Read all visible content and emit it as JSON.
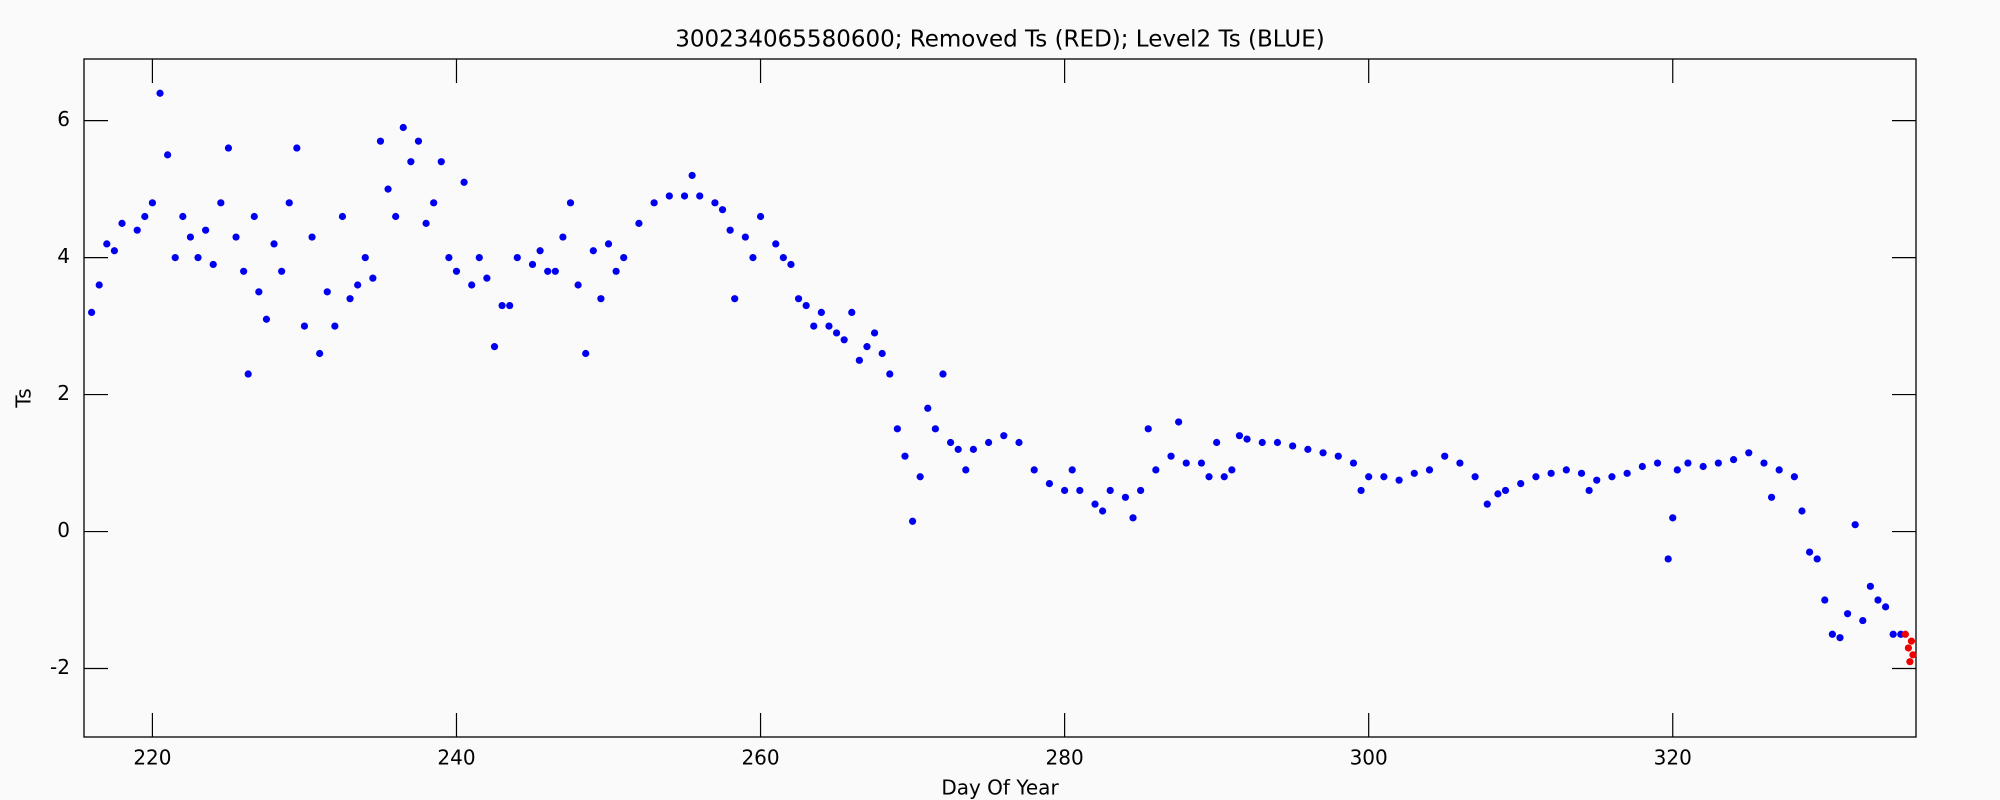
{
  "chart_data": {
    "type": "scatter",
    "title": "300234065580600; Removed Ts (RED); Level2 Ts (BLUE)",
    "x_label": "Day Of Year",
    "y_label": "Ts",
    "xlim": [
      215.5,
      336
    ],
    "ylim": [
      -3,
      6.9
    ],
    "xticks": [
      220,
      240,
      260,
      280,
      300,
      320
    ],
    "yticks": [
      -2,
      0,
      2,
      4,
      6
    ],
    "grid": false,
    "series": [
      {
        "color": "#0000ee",
        "x": [
          216,
          216.5,
          217,
          217.5,
          218,
          219,
          219.5,
          220,
          220.5,
          221,
          221.5,
          222,
          222.5,
          223,
          223.5,
          224,
          224.5,
          225,
          225.5,
          226,
          226.3,
          226.7,
          227,
          227.5,
          228,
          228.5,
          229,
          229.5,
          230,
          230.5,
          231,
          231.5,
          232,
          232.5,
          233,
          233.5,
          234,
          234.5,
          235,
          235.5,
          236,
          236.5,
          237,
          237.5,
          238,
          238.5,
          239,
          239.5,
          240,
          240.5,
          241,
          241.5,
          242,
          242.5,
          243,
          243.5,
          244,
          245,
          245.5,
          246,
          246.5,
          247,
          247.5,
          248,
          248.5,
          249,
          249.5,
          250,
          250.5,
          251,
          252,
          253,
          254,
          255,
          255.5,
          256,
          257,
          257.5,
          258,
          258.3,
          259,
          259.5,
          260,
          261,
          261.5,
          262,
          262.5,
          263,
          263.5,
          264,
          264.5,
          265,
          265.5,
          266,
          266.5,
          267,
          267.5,
          268,
          268.5,
          269,
          269.5,
          270,
          270.5,
          271,
          271.5,
          272,
          272.5,
          273,
          273.5,
          274,
          275,
          276,
          277,
          278,
          279,
          280,
          280.5,
          281,
          282,
          282.5,
          283,
          284,
          284.5,
          285,
          285.5,
          286,
          287,
          287.5,
          288,
          289,
          289.5,
          290,
          290.5,
          291,
          291.5,
          292,
          293,
          294,
          295,
          296,
          297,
          298,
          299,
          299.5,
          300,
          301,
          302,
          303,
          304,
          305,
          306,
          307,
          307.8,
          308.5,
          309,
          310,
          311,
          312,
          313,
          314,
          314.5,
          315,
          316,
          317,
          318,
          319,
          319.7,
          320,
          320.3,
          321,
          322,
          323,
          324,
          325,
          326,
          326.5,
          327,
          328,
          328.5,
          329,
          329.5,
          330,
          330.5,
          331,
          331.5,
          332,
          332.5,
          333,
          333.5,
          334,
          334.5,
          335
        ],
        "values": [
          3.2,
          3.6,
          4.2,
          4.1,
          4.5,
          4.4,
          4.6,
          4.8,
          6.4,
          5.5,
          4.0,
          4.6,
          4.3,
          4.0,
          4.4,
          3.9,
          4.8,
          5.6,
          4.3,
          3.8,
          2.3,
          4.6,
          3.5,
          3.1,
          4.2,
          3.8,
          4.8,
          5.6,
          3.0,
          4.3,
          2.6,
          3.5,
          3.0,
          4.6,
          3.4,
          3.6,
          4.0,
          3.7,
          5.7,
          5.0,
          4.6,
          5.9,
          5.4,
          5.7,
          4.5,
          4.8,
          5.4,
          4.0,
          3.8,
          5.1,
          3.6,
          4.0,
          3.7,
          2.7,
          3.3,
          3.3,
          4.0,
          3.9,
          4.1,
          3.8,
          3.8,
          4.3,
          4.8,
          3.6,
          2.6,
          4.1,
          3.4,
          4.2,
          3.8,
          4.0,
          4.5,
          4.8,
          4.9,
          4.9,
          5.2,
          4.9,
          4.8,
          4.7,
          4.4,
          3.4,
          4.3,
          4.0,
          4.6,
          4.2,
          4.0,
          3.9,
          3.4,
          3.3,
          3.0,
          3.2,
          3.0,
          2.9,
          2.8,
          3.2,
          2.5,
          2.7,
          2.9,
          2.6,
          2.3,
          1.5,
          1.1,
          0.15,
          0.8,
          1.8,
          1.5,
          2.3,
          1.3,
          1.2,
          0.9,
          1.2,
          1.3,
          1.4,
          1.3,
          0.9,
          0.7,
          0.6,
          0.9,
          0.6,
          0.4,
          0.3,
          0.6,
          0.5,
          0.2,
          0.6,
          1.5,
          0.9,
          1.1,
          1.6,
          1.0,
          1.0,
          0.8,
          1.3,
          0.8,
          0.9,
          1.4,
          1.35,
          1.3,
          1.3,
          1.25,
          1.2,
          1.15,
          1.1,
          1.0,
          0.6,
          0.8,
          0.8,
          0.75,
          0.85,
          0.9,
          1.1,
          1.0,
          0.8,
          0.4,
          0.55,
          0.6,
          0.7,
          0.8,
          0.85,
          0.9,
          0.85,
          0.6,
          0.75,
          0.8,
          0.85,
          0.95,
          1.0,
          -0.4,
          0.2,
          0.9,
          1.0,
          0.95,
          1.0,
          1.05,
          1.15,
          1.0,
          0.5,
          0.9,
          0.8,
          0.3,
          -0.3,
          -0.4,
          -1.0,
          -1.5,
          -1.55,
          -1.2,
          0.1,
          -1.3,
          -0.8,
          -1.0,
          -1.1,
          -1.5,
          -1.5
        ]
      },
      {
        "color": "#ee0000",
        "x": [
          335.3,
          335.5,
          335.6,
          335.7,
          335.8
        ],
        "values": [
          -1.5,
          -1.7,
          -1.9,
          -1.6,
          -1.8
        ]
      }
    ]
  }
}
